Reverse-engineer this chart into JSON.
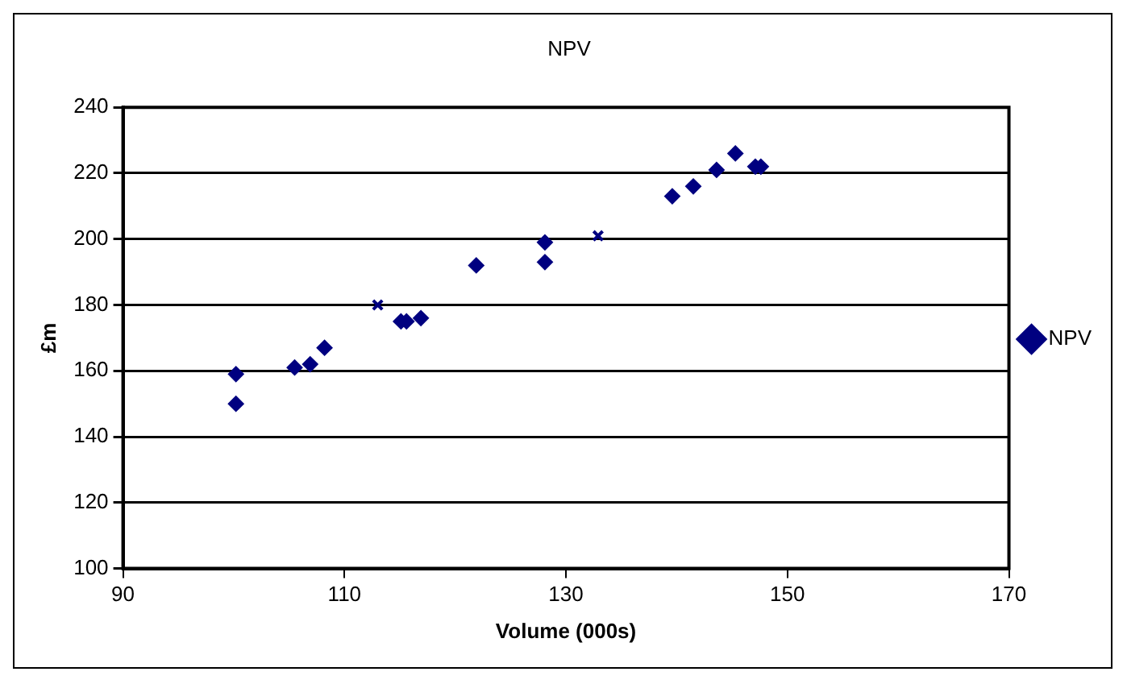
{
  "chart_data": {
    "type": "scatter",
    "title": "NPV",
    "xlabel": "Volume (000s)",
    "ylabel": "£m",
    "xlim": [
      90,
      170
    ],
    "xticks": [
      90,
      110,
      130,
      150,
      170
    ],
    "ylim": [
      100,
      240
    ],
    "yticks": [
      100,
      120,
      140,
      160,
      180,
      200,
      220,
      240
    ],
    "grid": "y",
    "legend": "right",
    "marker": "diamond",
    "series": [
      {
        "name": "NPV",
        "color": "#000080",
        "x": [
          100.2,
          100.2,
          105.5,
          106.9,
          108.2,
          115.1,
          115.6,
          116.9,
          121.9,
          128.1,
          128.1,
          139.6,
          141.5,
          143.6,
          145.3,
          147.1,
          147.6
        ],
        "values": [
          159,
          150,
          161,
          162,
          167,
          175,
          175,
          176,
          192,
          199,
          193,
          213,
          216,
          221,
          226,
          222,
          222
        ]
      },
      {
        "color": "#000080",
        "marker": "cross",
        "x": [
          113,
          132.9
        ],
        "values": [
          180,
          201
        ]
      }
    ]
  }
}
